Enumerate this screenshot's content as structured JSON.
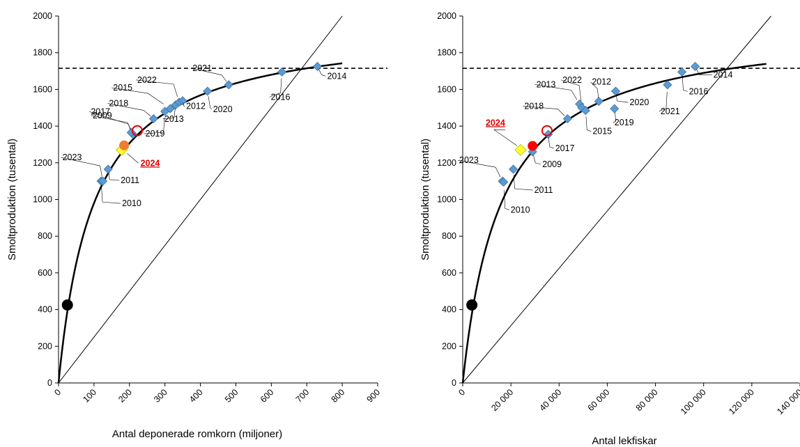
{
  "chart_data": [
    {
      "type": "scatter",
      "xlabel": "Antal deponerade romkorn (miljoner)",
      "ylabel": "Smoltproduktion (tusental)",
      "xlim": [
        0,
        900
      ],
      "ylim": [
        0,
        2000
      ],
      "x_ticks": [
        "0",
        "100",
        "200",
        "300",
        "400",
        "500",
        "600",
        "700",
        "800",
        "900"
      ],
      "y_ticks": [
        "0",
        "200",
        "400",
        "600",
        "800",
        "1000",
        "1200",
        "1400",
        "1600",
        "1800",
        "2000"
      ],
      "grid": false,
      "carrying_capacity": 1715,
      "replacement_line": [
        [
          0,
          0
        ],
        [
          800,
          2000
        ]
      ],
      "curve": {
        "max": 1960,
        "half": 100,
        "x_end": 800
      },
      "series": [
        {
          "kind": "yearly-points",
          "points": [
            {
              "label": "2010",
              "x": 120,
              "y": 1100
            },
            {
              "label": "2011",
              "x": 140,
              "y": 1165
            },
            {
              "label": "2023",
              "x": 125,
              "y": 1100
            },
            {
              "label": "2009",
              "x": 210,
              "y": 1355
            },
            {
              "label": "2017",
              "x": 205,
              "y": 1365
            },
            {
              "label": "2018",
              "x": 268,
              "y": 1440
            },
            {
              "label": "2019",
              "x": 300,
              "y": 1480
            },
            {
              "label": "2015",
              "x": 315,
              "y": 1495
            },
            {
              "label": "2013",
              "x": 330,
              "y": 1515
            },
            {
              "label": "2022",
              "x": 340,
              "y": 1530
            },
            {
              "label": "2012",
              "x": 350,
              "y": 1538
            },
            {
              "label": "2020",
              "x": 420,
              "y": 1590
            },
            {
              "label": "2021",
              "x": 480,
              "y": 1625
            },
            {
              "label": "2016",
              "x": 630,
              "y": 1695
            },
            {
              "label": "2014",
              "x": 730,
              "y": 1725
            }
          ]
        },
        {
          "kind": "marker-2024",
          "label": "2024",
          "x": 178,
          "y": 1270
        },
        {
          "kind": "open-circle",
          "x": 222,
          "y": 1375
        },
        {
          "kind": "filled-circle",
          "x": 185,
          "y": 1295
        },
        {
          "kind": "black-dot",
          "x": 25,
          "y": 425
        }
      ]
    },
    {
      "type": "scatter",
      "xlabel": "Antal lekfiskar",
      "ylabel": "Smoltproduktion (tusental)",
      "xlim": [
        0,
        140000
      ],
      "ylim": [
        0,
        2000
      ],
      "x_ticks": [
        "0",
        "20 000",
        "40 000",
        "60 000",
        "80 000",
        "100 000",
        "120 000",
        "140 000"
      ],
      "y_ticks": [
        "0",
        "200",
        "400",
        "600",
        "800",
        "1000",
        "1200",
        "1400",
        "1600",
        "1800",
        "2000"
      ],
      "grid": false,
      "carrying_capacity": 1715,
      "replacement_line": [
        [
          0,
          0
        ],
        [
          128000,
          2000
        ]
      ],
      "curve": {
        "max": 1960,
        "half": 16000,
        "x_end": 126000
      },
      "series": [
        {
          "kind": "yearly-points",
          "points": [
            {
              "label": "2023",
              "x": 16500,
              "y": 1100
            },
            {
              "label": "2010",
              "x": 17000,
              "y": 1095
            },
            {
              "label": "2011",
              "x": 21000,
              "y": 1165
            },
            {
              "label": "2009",
              "x": 29000,
              "y": 1260
            },
            {
              "label": "2017",
              "x": 35500,
              "y": 1355
            },
            {
              "label": "2018",
              "x": 43500,
              "y": 1440
            },
            {
              "label": "2013",
              "x": 48500,
              "y": 1520
            },
            {
              "label": "2022",
              "x": 49500,
              "y": 1500
            },
            {
              "label": "2015",
              "x": 51000,
              "y": 1485
            },
            {
              "label": "2012",
              "x": 56500,
              "y": 1535
            },
            {
              "label": "2019",
              "x": 63000,
              "y": 1495
            },
            {
              "label": "2020",
              "x": 63500,
              "y": 1590
            },
            {
              "label": "2021",
              "x": 85000,
              "y": 1625
            },
            {
              "label": "2016",
              "x": 91000,
              "y": 1695
            },
            {
              "label": "2014",
              "x": 96500,
              "y": 1725
            }
          ]
        },
        {
          "kind": "marker-2024",
          "label": "2024",
          "x": 24000,
          "y": 1270
        },
        {
          "kind": "open-circle",
          "x": 35000,
          "y": 1375
        },
        {
          "kind": "filled-circle",
          "x": 29000,
          "y": 1292
        },
        {
          "kind": "black-dot",
          "x": 3800,
          "y": 425
        }
      ]
    }
  ],
  "colors": {
    "point": "#5b9bd5",
    "point_edge": "#41719c",
    "marker_2024": "#ffff33",
    "marker_2024_edge": "#b5b500",
    "highlight": "#e00000",
    "filled_circle_left": "#ed7d31",
    "filled_circle_right": "#ff0000",
    "black_dot": "#000000"
  }
}
